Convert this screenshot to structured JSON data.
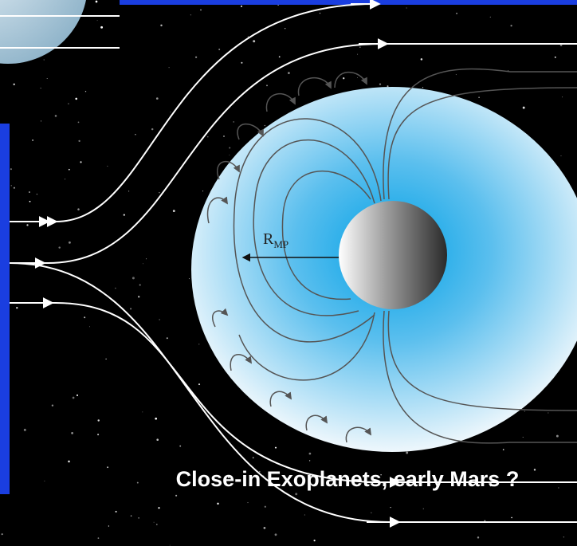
{
  "diagram": {
    "label": {
      "base": "R",
      "subscript": "MP"
    },
    "caption": "Close-in Exoplanets, early Mars ?"
  }
}
